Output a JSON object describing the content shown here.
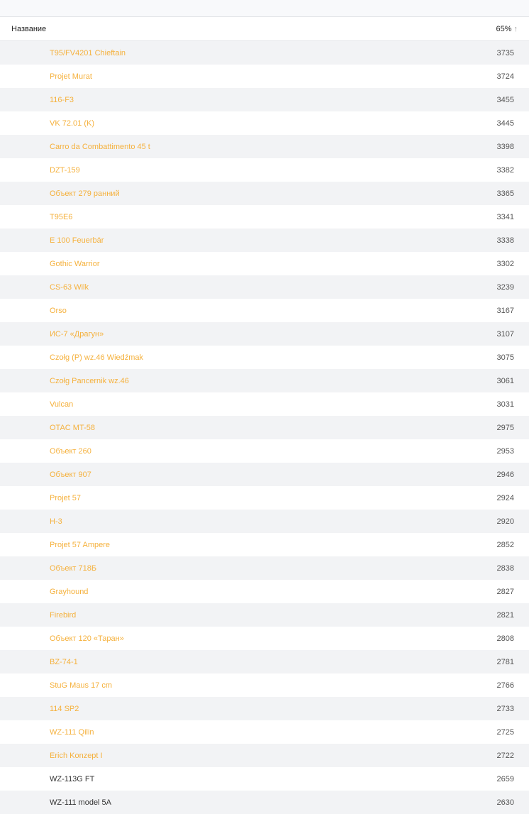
{
  "colors": {
    "accent": "#f5b13d",
    "row_alt": "#f2f3f5"
  },
  "header": {
    "name_label": "Название",
    "value_label": "65%",
    "sort_icon": "arrow-up-icon"
  },
  "rows": [
    {
      "name": "T95/FV4201 Chieftain",
      "value": "3735",
      "highlight": true
    },
    {
      "name": "Projet Murat",
      "value": "3724",
      "highlight": true
    },
    {
      "name": "116-F3",
      "value": "3455",
      "highlight": true
    },
    {
      "name": "VK 72.01 (K)",
      "value": "3445",
      "highlight": true
    },
    {
      "name": "Carro da Combattimento 45 t",
      "value": "3398",
      "highlight": true
    },
    {
      "name": "DZT-159",
      "value": "3382",
      "highlight": true
    },
    {
      "name": "Объект 279 ранний",
      "value": "3365",
      "highlight": true
    },
    {
      "name": "T95E6",
      "value": "3341",
      "highlight": true
    },
    {
      "name": "E 100 Feuerbär",
      "value": "3338",
      "highlight": true
    },
    {
      "name": "Gothic Warrior",
      "value": "3302",
      "highlight": true
    },
    {
      "name": "CS-63 Wilk",
      "value": "3239",
      "highlight": true
    },
    {
      "name": "Orso",
      "value": "3167",
      "highlight": true
    },
    {
      "name": "ИС-7 «Драгун»",
      "value": "3107",
      "highlight": true
    },
    {
      "name": "Czołg (P) wz.46 Wiedźmak",
      "value": "3075",
      "highlight": true
    },
    {
      "name": "Czołg Pancernik wz.46",
      "value": "3061",
      "highlight": true
    },
    {
      "name": "Vulcan",
      "value": "3031",
      "highlight": true
    },
    {
      "name": "OTAC MT-58",
      "value": "2975",
      "highlight": true
    },
    {
      "name": "Объект 260",
      "value": "2953",
      "highlight": true
    },
    {
      "name": "Объект 907",
      "value": "2946",
      "highlight": true
    },
    {
      "name": "Projet 57",
      "value": "2924",
      "highlight": true
    },
    {
      "name": "H-3",
      "value": "2920",
      "highlight": true
    },
    {
      "name": "Projet 57 Ampere",
      "value": "2852",
      "highlight": true
    },
    {
      "name": "Объект 718Б",
      "value": "2838",
      "highlight": true
    },
    {
      "name": "Grayhound",
      "value": "2827",
      "highlight": true
    },
    {
      "name": "Firebird",
      "value": "2821",
      "highlight": true
    },
    {
      "name": "Объект 120 «Таран»",
      "value": "2808",
      "highlight": true
    },
    {
      "name": "BZ-74-1",
      "value": "2781",
      "highlight": true
    },
    {
      "name": "StuG Maus 17 cm",
      "value": "2766",
      "highlight": true
    },
    {
      "name": "114 SP2",
      "value": "2733",
      "highlight": true
    },
    {
      "name": "WZ-111 Qilin",
      "value": "2725",
      "highlight": true
    },
    {
      "name": "Erich Konzept I",
      "value": "2722",
      "highlight": true
    },
    {
      "name": "WZ-113G FT",
      "value": "2659",
      "highlight": false
    },
    {
      "name": "WZ-111 model 5A",
      "value": "2630",
      "highlight": false
    }
  ]
}
